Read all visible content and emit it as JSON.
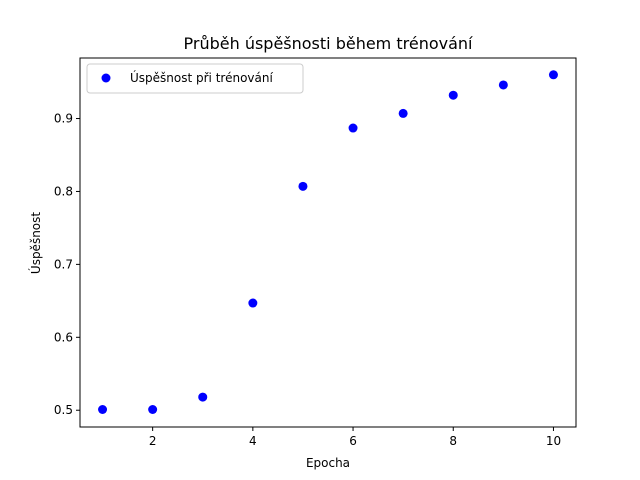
{
  "chart_data": {
    "type": "scatter",
    "title": "Průběh úspěšnosti během trénování",
    "xlabel": "Epocha",
    "ylabel": "Úspěšnost",
    "xlim": [
      0.55,
      10.45
    ],
    "ylim": [
      0.477,
      0.983
    ],
    "xticks": [
      2,
      4,
      6,
      8,
      10
    ],
    "yticks": [
      0.5,
      0.6,
      0.7,
      0.8,
      0.9
    ],
    "xtick_labels": [
      "2",
      "4",
      "6",
      "8",
      "10"
    ],
    "ytick_labels": [
      "0.5",
      "0.6",
      "0.7",
      "0.8",
      "0.9"
    ],
    "grid": false,
    "legend_position": "top-left",
    "series": [
      {
        "name": "Úspěšnost při trénování",
        "color": "#0000ff",
        "marker": "circle",
        "x": [
          1,
          2,
          3,
          4,
          5,
          6,
          7,
          8,
          9,
          10
        ],
        "y": [
          0.501,
          0.501,
          0.518,
          0.647,
          0.807,
          0.887,
          0.907,
          0.932,
          0.946,
          0.96
        ]
      }
    ]
  }
}
